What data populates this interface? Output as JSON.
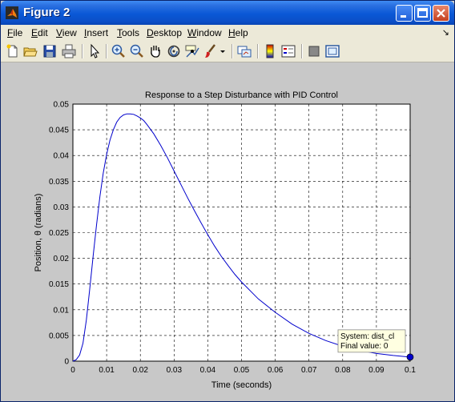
{
  "window": {
    "title": "Figure 2"
  },
  "menu": {
    "items": [
      {
        "label": "File",
        "mnemonic": "F",
        "rest": "ile"
      },
      {
        "label": "Edit",
        "mnemonic": "E",
        "rest": "dit"
      },
      {
        "label": "View",
        "mnemonic": "V",
        "rest": "iew"
      },
      {
        "label": "Insert",
        "mnemonic": "I",
        "rest": "nsert"
      },
      {
        "label": "Tools",
        "mnemonic": "T",
        "rest": "ools"
      },
      {
        "label": "Desktop",
        "mnemonic": "D",
        "rest": "esktop"
      },
      {
        "label": "Window",
        "mnemonic": "W",
        "rest": "indow"
      },
      {
        "label": "Help",
        "mnemonic": "H",
        "rest": "elp"
      }
    ],
    "dock_arrow": "↘"
  },
  "toolbar": {
    "icons": [
      "new-figure-icon",
      "open-file-icon",
      "save-icon",
      "print-icon",
      "edit-plot-arrow-icon",
      "zoom-in-icon",
      "zoom-out-icon",
      "pan-hand-icon",
      "rotate-3d-icon",
      "data-cursor-icon",
      "brush-icon",
      "dropdown-arrow-icon",
      "link-plot-icon",
      "colorbar-icon",
      "legend-icon",
      "hide-plot-tools-icon",
      "show-plot-tools-icon"
    ]
  },
  "chart_data": {
    "type": "line",
    "title": "Response to a Step Disturbance with PID Control",
    "xlabel": "Time (seconds)",
    "ylabel": "Position, θ (radians)",
    "xlim": [
      0,
      0.1
    ],
    "ylim": [
      0,
      0.05
    ],
    "xticks": [
      "0",
      "0.01",
      "0.02",
      "0.03",
      "0.04",
      "0.05",
      "0.06",
      "0.07",
      "0.08",
      "0.09",
      "0.1"
    ],
    "yticks": [
      "0",
      "0.005",
      "0.01",
      "0.015",
      "0.02",
      "0.025",
      "0.03",
      "0.035",
      "0.04",
      "0.045",
      "0.05"
    ],
    "grid": true,
    "line_color": "#0000cc",
    "series": [
      {
        "x": [
          0,
          0.001,
          0.002,
          0.003,
          0.004,
          0.005,
          0.006,
          0.007,
          0.008,
          0.009,
          0.01,
          0.011,
          0.012,
          0.013,
          0.014,
          0.015,
          0.016,
          0.017,
          0.018,
          0.019,
          0.02,
          0.021,
          0.022,
          0.024,
          0.026,
          0.028,
          0.03,
          0.032,
          0.034,
          0.036,
          0.038,
          0.04,
          0.042,
          0.044,
          0.046,
          0.048,
          0.05,
          0.055,
          0.06,
          0.065,
          0.07,
          0.075,
          0.08,
          0.085,
          0.09,
          0.095,
          0.1
        ],
        "y": [
          0,
          0.0003,
          0.0012,
          0.0035,
          0.008,
          0.014,
          0.0205,
          0.0265,
          0.032,
          0.0366,
          0.0402,
          0.043,
          0.045,
          0.0465,
          0.0474,
          0.0479,
          0.0481,
          0.0481,
          0.048,
          0.0477,
          0.0473,
          0.0468,
          0.046,
          0.0442,
          0.042,
          0.0396,
          0.037,
          0.0344,
          0.0318,
          0.0293,
          0.0269,
          0.0246,
          0.0224,
          0.0204,
          0.0186,
          0.0169,
          0.0154,
          0.0121,
          0.0095,
          0.0072,
          0.0054,
          0.004,
          0.0029,
          0.0021,
          0.0015,
          0.0011,
          0.0008
        ]
      }
    ],
    "datatip": {
      "line1": "System: dist_cl",
      "line2": "Final value: 0",
      "x": 0.1,
      "y": 0.0008
    }
  }
}
